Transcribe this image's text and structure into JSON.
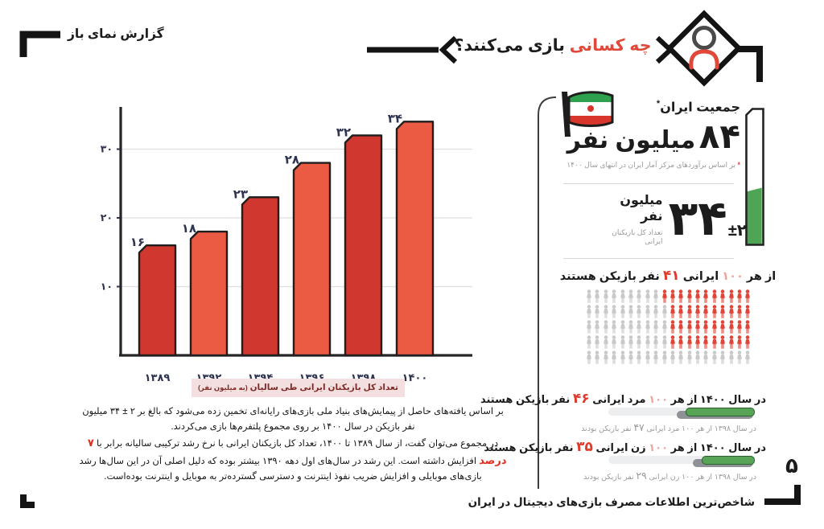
{
  "header": {
    "report_title": "گزارش نمای باز",
    "title_highlight": "چه کسانی",
    "title_rest": " بازی می‌کنند؟"
  },
  "chart_data": {
    "type": "bar",
    "title": "تعداد کل بازیکنان ایرانی طی سالیان",
    "title_unit": "(به میلیون نفر)",
    "categories": [
      "۱۳۸۹",
      "۱۳۹۲",
      "۱۳۹۴",
      "۱۳۹۶",
      "۱۳۹۸",
      "۱۴۰۰"
    ],
    "values": [
      16,
      18,
      23,
      28,
      32,
      34
    ],
    "value_labels": [
      "۱۶",
      "۱۸",
      "۲۳",
      "۲۸",
      "۳۲",
      "۳۴"
    ],
    "y_ticks": [
      {
        "v": 10,
        "label": "۱۰"
      },
      {
        "v": 20,
        "label": "۲۰"
      },
      {
        "v": 30,
        "label": "۳۰"
      }
    ],
    "ylim": [
      0,
      36
    ],
    "grid": true,
    "bar_colors": [
      "#d0372f",
      "#eb5a42"
    ],
    "xlabel": "",
    "ylabel": ""
  },
  "paragraphs": {
    "p1": "بر اساس یافته‌های حاصل از پیمایش‌های بنیاد ملی بازی‌های رایانه‌ای تخمین زده می‌شود که بالغ بر ۲ ± ۳۴ میلیون نفر بازیکن در سال ۱۴۰۰ بر روی مجموع پلتفرم‌ها بازی می‌کردند.",
    "p2_pre": "در مجموع می‌توان گفت، از سال ۱۳۸۹ تا ۱۴۰۰، تعداد کل بازیکنان ایرانی با نرخ رشد ترکیبی سالیانه برابر با ",
    "p2_highlight": "۷ درصد",
    "p2_post": " افزایش داشته است. این رشد در سال‌های اول دهه ۱۳۹۰ بیشتر بوده که دلیل اصلی آن در این سال‌ها رشد بازی‌های موبایلی و افزایش ضریب نفوذ اینترنت و دسترسی گسترده‌تر به موبایل و اینترنت بوده‌است."
  },
  "panel": {
    "population": {
      "label": "جمعیت ایران",
      "asterisk": "*",
      "value": "۸۴",
      "unit": "میلیون نفر",
      "footnote_mark": "*",
      "footnote": "بر اساس برآوردهای مرکز آمار ایران در انتهای سال ۱۴۰۰"
    },
    "players": {
      "value": "۳۴",
      "plusminus": "±۲",
      "unit": "میلیون نفر",
      "sublabel": "تعداد کل بازیکنان ایرانی",
      "gauge_fill_percent": 39
    },
    "ratio": {
      "prefix": "از هر ",
      "hundred": "۱۰۰",
      "middle": " ایرانی ",
      "count": "۴۱",
      "suffix": " نفر بازیکن هستند",
      "grid": {
        "rows": 5,
        "cols": 20,
        "total": 100,
        "highlighted": 41,
        "red_per_row": [
          11,
          10,
          10,
          10,
          0
        ]
      }
    },
    "men": {
      "line_pre": "در سال ۱۴۰۰ از هر ",
      "hundred": "۱۰۰",
      "line_mid": " مرد ایرانی ",
      "value": "۴۶",
      "line_suf": " نفر بازیکن هستند",
      "percent": 46,
      "prev_pre": "در سال ۱۳۹۸ از هر ۱۰۰ مرد ایرانی ",
      "prev_value": "۴۷",
      "prev_suf": " نفر بازیکن بودند"
    },
    "women": {
      "line_pre": "در سال ۱۴۰۰ از هر ",
      "hundred": "۱۰۰",
      "line_mid": " زن ایرانی ",
      "value": "۳۵",
      "line_suf": " نفر بازیکن هستند",
      "percent": 35,
      "prev_pre": "در سال ۱۳۹۸ از هر ۱۰۰ زن ایرانی ",
      "prev_value": "۲۹",
      "prev_suf": " نفر بازیکن بودند"
    }
  },
  "footer": {
    "page_number": "۵",
    "caption": "شاخص‌ترین اطلاعات مصرف بازی‌های دیجیتال در ایران"
  },
  "colors": {
    "accent_red": "#e2483a",
    "light_red": "#f0a198",
    "bar_dark_red": "#d0372f",
    "bar_light_red": "#eb5a42",
    "green": "#57a457",
    "gauge_green": "#4ea654",
    "people_gray": "#c9c9c9",
    "people_red": "#e04537"
  }
}
